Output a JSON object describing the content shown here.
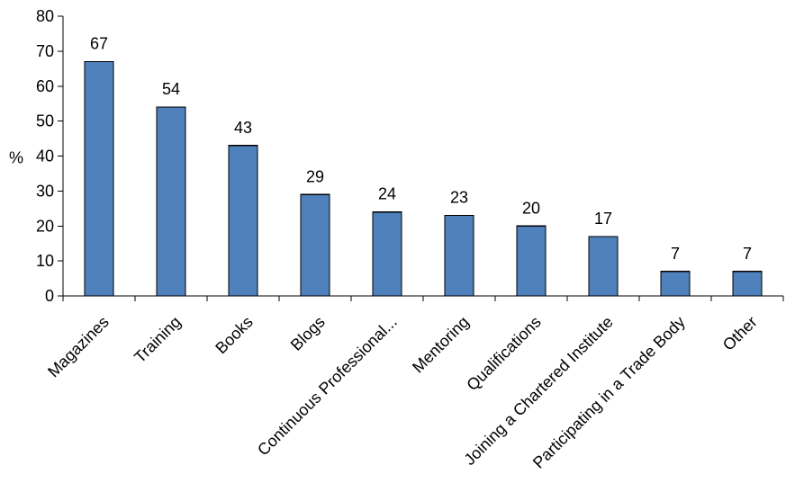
{
  "chart_data": {
    "type": "bar",
    "title": "",
    "xlabel": "",
    "ylabel": "%",
    "ylim": [
      0,
      80
    ],
    "ytick_step": 10,
    "grid": false,
    "legend": "none",
    "bar_color": "#4F81BD",
    "categories": [
      "Magazines",
      "Training",
      "Books",
      "Blogs",
      "Continuous Professional...",
      "Mentoring",
      "Qualifications",
      "Joining a Chartered Institute",
      "Participating in a Trade Body",
      "Other"
    ],
    "values": [
      67,
      54,
      43,
      29,
      24,
      23,
      20,
      17,
      7,
      7
    ],
    "data_labels": [
      "67",
      "54",
      "43",
      "29",
      "24",
      "23",
      "20",
      "17",
      "7",
      "7"
    ]
  }
}
